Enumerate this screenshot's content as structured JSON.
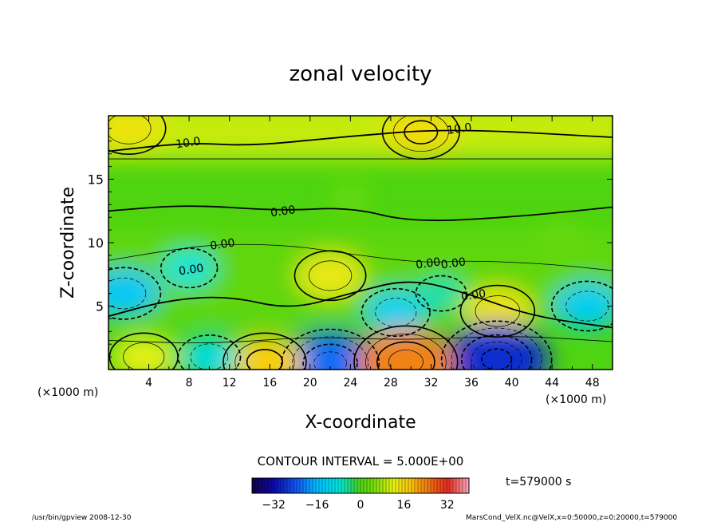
{
  "chart_data": {
    "type": "heatmap",
    "title": "zonal velocity",
    "xlabel": "X-coordinate",
    "ylabel": "Z-coordinate",
    "x_unit_left": "(×1000 m)",
    "x_unit_right": "(×1000 m)",
    "xlim": [
      0,
      50
    ],
    "ylim": [
      0,
      20
    ],
    "x_ticks": [
      4,
      8,
      12,
      16,
      20,
      24,
      28,
      32,
      36,
      40,
      44,
      48
    ],
    "y_ticks": [
      5,
      10,
      15
    ],
    "contour_interval_text": "CONTOUR INTERVAL = 5.000E+00",
    "contour_labels": [
      {
        "text": "10.0",
        "x": 34.8,
        "z": 19.0
      },
      {
        "text": "10.0",
        "x": 7.9,
        "z": 17.9
      },
      {
        "text": "0.00",
        "x": 17.3,
        "z": 12.5
      },
      {
        "text": "0.00",
        "x": 11.3,
        "z": 9.9
      },
      {
        "text": "0.00",
        "x": 8.2,
        "z": 7.9
      },
      {
        "text": "0.00",
        "x": 31.7,
        "z": 8.4
      },
      {
        "text": "0.00",
        "x": 34.2,
        "z": 8.4
      },
      {
        "text": "0.00",
        "x": 36.2,
        "z": 5.9
      }
    ],
    "colorbar": {
      "range": [
        -40,
        40
      ],
      "tick_labels": [
        "−32",
        "−16",
        "0",
        "16",
        "32"
      ],
      "tick_values": [
        -32,
        -16,
        0,
        16,
        32
      ]
    },
    "features": [
      {
        "x": 31,
        "z": 18.7,
        "value": 15
      },
      {
        "x": 2,
        "z": 19.0,
        "value": 14
      },
      {
        "x": 24,
        "z": 13.5,
        "value": 3
      },
      {
        "x": 22,
        "z": 7.4,
        "value": 13
      },
      {
        "x": 38.6,
        "z": 4.6,
        "value": 14
      },
      {
        "x": 1.5,
        "z": 6.0,
        "value": -14
      },
      {
        "x": 28.5,
        "z": 4.5,
        "value": -12
      },
      {
        "x": 47.5,
        "z": 5.0,
        "value": -13
      },
      {
        "x": 38.5,
        "z": 0.8,
        "value": -28
      },
      {
        "x": 22,
        "z": 0.5,
        "value": -22
      },
      {
        "x": 29.5,
        "z": 0.6,
        "value": 24
      },
      {
        "x": 15.5,
        "z": 0.6,
        "value": 17
      },
      {
        "x": 10,
        "z": 1.0,
        "value": -10
      },
      {
        "x": 3.5,
        "z": 1.0,
        "value": 12
      },
      {
        "x": 8,
        "z": 8.0,
        "value": -8
      },
      {
        "x": 33,
        "z": 6.0,
        "value": -6
      },
      {
        "x": 45,
        "z": 10.5,
        "value": 3
      }
    ],
    "time_label": "t=579000 s"
  },
  "footer": {
    "left": "/usr/bin/gpview   2008-12-30",
    "right": "MarsCond_VelX.nc@VelX,x=0:50000,z=0:20000,t=579000"
  },
  "colors": {
    "background": "#ffffff",
    "text": "#000000"
  }
}
